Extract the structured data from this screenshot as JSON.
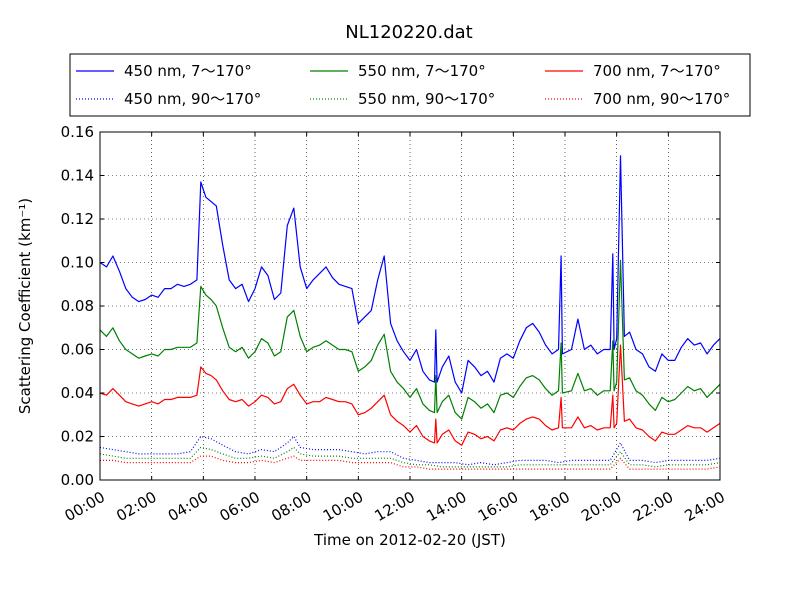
{
  "chart_data": {
    "type": "line",
    "title": "NL120220.dat",
    "xlabel": "Time on 2012-02-20 (JST)",
    "ylabel": "Scattering Coefficient (km⁻¹)",
    "xlim": [
      0,
      24
    ],
    "ylim": [
      0,
      0.16
    ],
    "x_ticks": [
      0,
      2,
      4,
      6,
      8,
      10,
      12,
      14,
      16,
      18,
      20,
      22,
      24
    ],
    "x_tick_labels": [
      "00:00",
      "02:00",
      "04:00",
      "06:00",
      "08:00",
      "10:00",
      "12:00",
      "14:00",
      "16:00",
      "18:00",
      "20:00",
      "22:00",
      "24:00"
    ],
    "y_ticks": [
      0,
      0.02,
      0.04,
      0.06,
      0.08,
      0.1,
      0.12,
      0.14,
      0.16
    ],
    "y_tick_labels": [
      "0.00",
      "0.02",
      "0.04",
      "0.06",
      "0.08",
      "0.10",
      "0.12",
      "0.14",
      "0.16"
    ],
    "grid": true,
    "legend_position": "top",
    "x_unit": "hours",
    "series": [
      {
        "name": "450 nm, 7～170°",
        "color": "#0000ff",
        "style": "solid",
        "x": [
          0,
          0.25,
          0.5,
          0.75,
          1,
          1.25,
          1.5,
          1.75,
          2,
          2.25,
          2.5,
          2.75,
          3,
          3.25,
          3.5,
          3.75,
          3.9,
          4.1,
          4.3,
          4.5,
          4.75,
          5,
          5.25,
          5.5,
          5.75,
          6,
          6.25,
          6.5,
          6.75,
          7,
          7.25,
          7.5,
          7.75,
          8,
          8.25,
          8.5,
          8.75,
          9,
          9.25,
          9.5,
          9.75,
          10,
          10.25,
          10.5,
          10.75,
          11,
          11.25,
          11.5,
          11.75,
          12,
          12.25,
          12.5,
          12.75,
          12.95,
          13,
          13.05,
          13.25,
          13.5,
          13.75,
          14,
          14.25,
          14.5,
          14.75,
          15,
          15.25,
          15.5,
          15.75,
          16,
          16.25,
          16.5,
          16.75,
          17,
          17.25,
          17.5,
          17.75,
          17.85,
          17.9,
          18.25,
          18.5,
          18.75,
          19,
          19.25,
          19.5,
          19.75,
          19.85,
          19.9,
          20,
          20.15,
          20.3,
          20.5,
          20.75,
          21,
          21.25,
          21.5,
          21.75,
          22,
          22.25,
          22.5,
          22.75,
          23,
          23.25,
          23.5,
          23.75,
          24
        ],
        "y": [
          0.1,
          0.098,
          0.103,
          0.096,
          0.088,
          0.084,
          0.082,
          0.083,
          0.085,
          0.084,
          0.088,
          0.088,
          0.09,
          0.089,
          0.09,
          0.092,
          0.137,
          0.13,
          0.128,
          0.126,
          0.108,
          0.092,
          0.088,
          0.09,
          0.082,
          0.088,
          0.098,
          0.094,
          0.083,
          0.086,
          0.117,
          0.125,
          0.098,
          0.088,
          0.092,
          0.095,
          0.098,
          0.093,
          0.09,
          0.089,
          0.088,
          0.072,
          0.075,
          0.078,
          0.092,
          0.103,
          0.072,
          0.064,
          0.059,
          0.055,
          0.06,
          0.05,
          0.046,
          0.045,
          0.069,
          0.045,
          0.052,
          0.057,
          0.045,
          0.04,
          0.055,
          0.052,
          0.048,
          0.05,
          0.045,
          0.056,
          0.058,
          0.056,
          0.064,
          0.07,
          0.072,
          0.068,
          0.062,
          0.058,
          0.06,
          0.103,
          0.058,
          0.06,
          0.074,
          0.06,
          0.062,
          0.058,
          0.06,
          0.06,
          0.104,
          0.06,
          0.065,
          0.149,
          0.066,
          0.068,
          0.06,
          0.058,
          0.052,
          0.05,
          0.058,
          0.055,
          0.055,
          0.061,
          0.065,
          0.062,
          0.063,
          0.058,
          0.062,
          0.065
        ]
      },
      {
        "name": "550 nm, 7～170°",
        "color": "#008000",
        "style": "solid",
        "x": [
          0,
          0.25,
          0.5,
          0.75,
          1,
          1.25,
          1.5,
          1.75,
          2,
          2.25,
          2.5,
          2.75,
          3,
          3.25,
          3.5,
          3.75,
          3.9,
          4.1,
          4.3,
          4.5,
          4.75,
          5,
          5.25,
          5.5,
          5.75,
          6,
          6.25,
          6.5,
          6.75,
          7,
          7.25,
          7.5,
          7.75,
          8,
          8.25,
          8.5,
          8.75,
          9,
          9.25,
          9.5,
          9.75,
          10,
          10.25,
          10.5,
          10.75,
          11,
          11.25,
          11.5,
          11.75,
          12,
          12.25,
          12.5,
          12.75,
          12.95,
          13,
          13.05,
          13.25,
          13.5,
          13.75,
          14,
          14.25,
          14.5,
          14.75,
          15,
          15.25,
          15.5,
          15.75,
          16,
          16.25,
          16.5,
          16.75,
          17,
          17.25,
          17.5,
          17.75,
          17.85,
          17.9,
          18.25,
          18.5,
          18.75,
          19,
          19.25,
          19.5,
          19.75,
          19.85,
          19.9,
          20,
          20.15,
          20.3,
          20.5,
          20.75,
          21,
          21.25,
          21.5,
          21.75,
          22,
          22.25,
          22.5,
          22.75,
          23,
          23.25,
          23.5,
          23.75,
          24
        ],
        "y": [
          0.069,
          0.066,
          0.07,
          0.064,
          0.06,
          0.058,
          0.056,
          0.057,
          0.058,
          0.057,
          0.06,
          0.06,
          0.061,
          0.061,
          0.061,
          0.063,
          0.089,
          0.085,
          0.083,
          0.08,
          0.07,
          0.061,
          0.059,
          0.061,
          0.056,
          0.059,
          0.065,
          0.063,
          0.057,
          0.059,
          0.075,
          0.078,
          0.066,
          0.059,
          0.061,
          0.062,
          0.064,
          0.062,
          0.06,
          0.06,
          0.059,
          0.05,
          0.052,
          0.055,
          0.062,
          0.067,
          0.05,
          0.045,
          0.042,
          0.038,
          0.042,
          0.035,
          0.032,
          0.031,
          0.048,
          0.031,
          0.036,
          0.039,
          0.031,
          0.028,
          0.038,
          0.036,
          0.033,
          0.035,
          0.031,
          0.039,
          0.04,
          0.038,
          0.043,
          0.047,
          0.048,
          0.046,
          0.042,
          0.039,
          0.041,
          0.063,
          0.04,
          0.041,
          0.049,
          0.041,
          0.042,
          0.039,
          0.041,
          0.041,
          0.064,
          0.041,
          0.045,
          0.101,
          0.046,
          0.047,
          0.041,
          0.039,
          0.035,
          0.032,
          0.038,
          0.036,
          0.037,
          0.04,
          0.043,
          0.041,
          0.042,
          0.038,
          0.041,
          0.044
        ]
      },
      {
        "name": "700 nm, 7～170°",
        "color": "#ff0000",
        "style": "solid",
        "x": [
          0,
          0.25,
          0.5,
          0.75,
          1,
          1.25,
          1.5,
          1.75,
          2,
          2.25,
          2.5,
          2.75,
          3,
          3.25,
          3.5,
          3.75,
          3.9,
          4.1,
          4.3,
          4.5,
          4.75,
          5,
          5.25,
          5.5,
          5.75,
          6,
          6.25,
          6.5,
          6.75,
          7,
          7.25,
          7.5,
          7.75,
          8,
          8.25,
          8.5,
          8.75,
          9,
          9.25,
          9.5,
          9.75,
          10,
          10.25,
          10.5,
          10.75,
          11,
          11.25,
          11.5,
          11.75,
          12,
          12.25,
          12.5,
          12.75,
          12.95,
          13,
          13.05,
          13.25,
          13.5,
          13.75,
          14,
          14.25,
          14.5,
          14.75,
          15,
          15.25,
          15.5,
          15.75,
          16,
          16.25,
          16.5,
          16.75,
          17,
          17.25,
          17.5,
          17.75,
          17.85,
          17.9,
          18.25,
          18.5,
          18.75,
          19,
          19.25,
          19.5,
          19.75,
          19.85,
          19.9,
          20,
          20.15,
          20.3,
          20.5,
          20.75,
          21,
          21.25,
          21.5,
          21.75,
          22,
          22.25,
          22.5,
          22.75,
          23,
          23.25,
          23.5,
          23.75,
          24
        ],
        "y": [
          0.04,
          0.039,
          0.042,
          0.039,
          0.036,
          0.035,
          0.034,
          0.035,
          0.036,
          0.035,
          0.037,
          0.037,
          0.038,
          0.038,
          0.038,
          0.039,
          0.052,
          0.049,
          0.048,
          0.046,
          0.041,
          0.037,
          0.036,
          0.037,
          0.034,
          0.036,
          0.039,
          0.038,
          0.035,
          0.036,
          0.042,
          0.044,
          0.039,
          0.035,
          0.036,
          0.036,
          0.038,
          0.037,
          0.036,
          0.036,
          0.035,
          0.03,
          0.031,
          0.033,
          0.036,
          0.039,
          0.03,
          0.027,
          0.025,
          0.022,
          0.025,
          0.02,
          0.018,
          0.017,
          0.028,
          0.017,
          0.021,
          0.023,
          0.018,
          0.016,
          0.022,
          0.021,
          0.019,
          0.02,
          0.018,
          0.023,
          0.024,
          0.023,
          0.026,
          0.028,
          0.029,
          0.028,
          0.025,
          0.023,
          0.024,
          0.038,
          0.024,
          0.024,
          0.029,
          0.024,
          0.025,
          0.023,
          0.024,
          0.024,
          0.039,
          0.024,
          0.026,
          0.062,
          0.027,
          0.028,
          0.024,
          0.023,
          0.02,
          0.018,
          0.022,
          0.021,
          0.021,
          0.023,
          0.025,
          0.024,
          0.024,
          0.022,
          0.024,
          0.026
        ]
      },
      {
        "name": "450 nm, 90～170°",
        "color": "#0000ff",
        "style": "dotted",
        "x": [
          0,
          0.5,
          1,
          1.5,
          2,
          2.5,
          3,
          3.5,
          3.9,
          4.3,
          4.75,
          5.25,
          5.75,
          6.25,
          6.75,
          7.25,
          7.5,
          7.75,
          8.25,
          8.75,
          9.25,
          9.75,
          10.25,
          10.75,
          11.25,
          11.75,
          12.25,
          12.75,
          13.25,
          13.75,
          14.25,
          14.75,
          15.25,
          15.75,
          16.25,
          16.75,
          17.25,
          17.75,
          18.25,
          18.75,
          19.25,
          19.75,
          20.15,
          20.5,
          21,
          21.5,
          22,
          22.5,
          23,
          23.5,
          24
        ],
        "y": [
          0.015,
          0.014,
          0.013,
          0.012,
          0.012,
          0.012,
          0.012,
          0.013,
          0.02,
          0.019,
          0.016,
          0.013,
          0.012,
          0.014,
          0.013,
          0.017,
          0.02,
          0.015,
          0.014,
          0.014,
          0.014,
          0.013,
          0.012,
          0.013,
          0.013,
          0.01,
          0.009,
          0.008,
          0.008,
          0.008,
          0.007,
          0.008,
          0.007,
          0.008,
          0.009,
          0.009,
          0.009,
          0.008,
          0.009,
          0.009,
          0.009,
          0.009,
          0.017,
          0.009,
          0.009,
          0.008,
          0.009,
          0.009,
          0.009,
          0.009,
          0.01
        ]
      },
      {
        "name": "550 nm, 90～170°",
        "color": "#008000",
        "style": "dotted",
        "x": [
          0,
          0.5,
          1,
          1.5,
          2,
          2.5,
          3,
          3.5,
          3.9,
          4.3,
          4.75,
          5.25,
          5.75,
          6.25,
          6.75,
          7.25,
          7.5,
          7.75,
          8.25,
          8.75,
          9.25,
          9.75,
          10.25,
          10.75,
          11.25,
          11.75,
          12.25,
          12.75,
          13.25,
          13.75,
          14.25,
          14.75,
          15.25,
          15.75,
          16.25,
          16.75,
          17.25,
          17.75,
          18.25,
          18.75,
          19.25,
          19.75,
          20.15,
          20.5,
          21,
          21.5,
          22,
          22.5,
          23,
          23.5,
          24
        ],
        "y": [
          0.012,
          0.011,
          0.01,
          0.01,
          0.01,
          0.01,
          0.01,
          0.01,
          0.015,
          0.014,
          0.012,
          0.01,
          0.01,
          0.011,
          0.01,
          0.013,
          0.015,
          0.012,
          0.011,
          0.011,
          0.011,
          0.01,
          0.01,
          0.01,
          0.01,
          0.008,
          0.007,
          0.007,
          0.006,
          0.006,
          0.006,
          0.006,
          0.006,
          0.006,
          0.007,
          0.007,
          0.007,
          0.007,
          0.007,
          0.007,
          0.007,
          0.007,
          0.013,
          0.007,
          0.007,
          0.006,
          0.007,
          0.007,
          0.007,
          0.007,
          0.008
        ]
      },
      {
        "name": "700 nm, 90～170°",
        "color": "#ff0000",
        "style": "dotted",
        "x": [
          0,
          0.5,
          1,
          1.5,
          2,
          2.5,
          3,
          3.5,
          3.9,
          4.3,
          4.75,
          5.25,
          5.75,
          6.25,
          6.75,
          7.25,
          7.5,
          7.75,
          8.25,
          8.75,
          9.25,
          9.75,
          10.25,
          10.75,
          11.25,
          11.75,
          12.25,
          12.75,
          13.25,
          13.75,
          14.25,
          14.75,
          15.25,
          15.75,
          16.25,
          16.75,
          17.25,
          17.75,
          18.25,
          18.75,
          19.25,
          19.75,
          20.15,
          20.5,
          21,
          21.5,
          22,
          22.5,
          23,
          23.5,
          24
        ],
        "y": [
          0.009,
          0.009,
          0.008,
          0.008,
          0.008,
          0.008,
          0.008,
          0.008,
          0.011,
          0.011,
          0.009,
          0.008,
          0.008,
          0.009,
          0.008,
          0.01,
          0.011,
          0.009,
          0.009,
          0.009,
          0.009,
          0.008,
          0.008,
          0.008,
          0.008,
          0.006,
          0.006,
          0.005,
          0.005,
          0.005,
          0.005,
          0.005,
          0.005,
          0.005,
          0.005,
          0.005,
          0.005,
          0.005,
          0.005,
          0.005,
          0.005,
          0.005,
          0.01,
          0.005,
          0.005,
          0.005,
          0.005,
          0.005,
          0.005,
          0.005,
          0.006
        ]
      }
    ]
  }
}
